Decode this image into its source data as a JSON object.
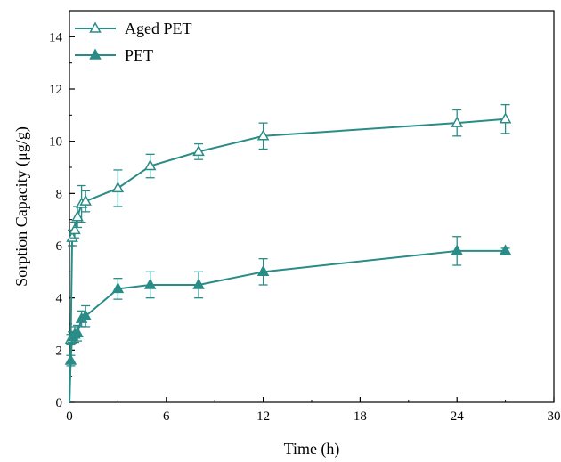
{
  "chart_data": {
    "type": "line",
    "xlabel": "Time (h)",
    "ylabel": "Sorption Capacity (μg/g)",
    "xlim": [
      0,
      30
    ],
    "ylim": [
      0,
      15
    ],
    "xticks": [
      0,
      6,
      12,
      18,
      24,
      30
    ],
    "yticks": [
      0,
      2,
      4,
      6,
      8,
      10,
      12,
      14
    ],
    "grid": false,
    "legend_position": "top-left",
    "series": [
      {
        "name": "Aged PET",
        "marker": "open-triangle",
        "color": "#2a8c87",
        "x": [
          0,
          0.08,
          0.17,
          0.33,
          0.5,
          0.75,
          1,
          3,
          5,
          8,
          12,
          24,
          27
        ],
        "y": [
          0,
          2.4,
          6.3,
          6.6,
          7.1,
          7.6,
          7.7,
          8.2,
          9.05,
          9.6,
          10.2,
          10.7,
          10.85
        ],
        "err": [
          0,
          0.2,
          0.3,
          0.3,
          0.4,
          0.7,
          0.4,
          0.7,
          0.45,
          0.3,
          0.5,
          0.5,
          0.55
        ]
      },
      {
        "name": "PET",
        "marker": "filled-triangle",
        "color": "#2a8c87",
        "x": [
          0,
          0.08,
          0.17,
          0.33,
          0.5,
          0.75,
          1,
          3,
          5,
          8,
          12,
          24,
          27
        ],
        "y": [
          0,
          1.6,
          2.5,
          2.6,
          2.65,
          3.2,
          3.3,
          4.35,
          4.5,
          4.5,
          5.0,
          5.8,
          5.8
        ],
        "err": [
          0,
          0.2,
          0.2,
          0.3,
          0.3,
          0.3,
          0.4,
          0.4,
          0.5,
          0.5,
          0.5,
          0.55,
          0.1
        ]
      }
    ]
  }
}
